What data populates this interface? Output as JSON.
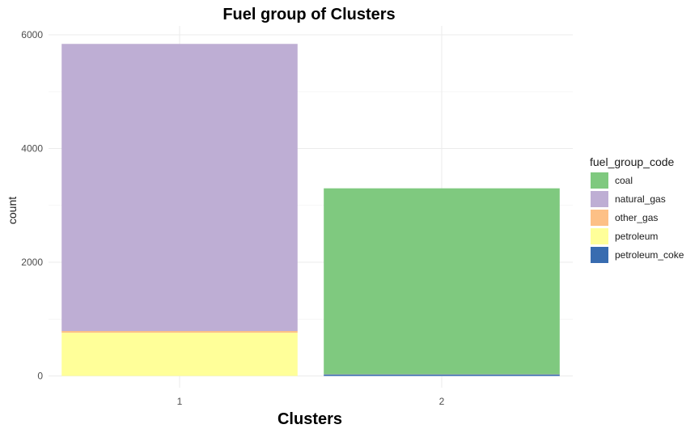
{
  "chart_data": {
    "type": "bar",
    "stacked": true,
    "title": "Fuel group of Clusters",
    "xlabel": "Clusters",
    "ylabel": "count",
    "categories": [
      "1",
      "2"
    ],
    "ylim": [
      0,
      6200
    ],
    "yticks": [
      0,
      2000,
      4000,
      6000
    ],
    "yticklabels": [
      "0",
      "2000",
      "4000",
      "6000"
    ],
    "legend_title": "fuel_group_code",
    "legend_position": "right",
    "grid": true,
    "stack_order_top_to_bottom": [
      "coal",
      "natural_gas",
      "other_gas",
      "petroleum",
      "petroleum_coke"
    ],
    "series": [
      {
        "name": "coal",
        "color": "#7fc97f",
        "values": [
          0,
          3265
        ]
      },
      {
        "name": "natural_gas",
        "color": "#beaed4",
        "values": [
          5050,
          0
        ]
      },
      {
        "name": "other_gas",
        "color": "#fdc086",
        "values": [
          30,
          0
        ]
      },
      {
        "name": "petroleum",
        "color": "#ffff99",
        "values": [
          760,
          5
        ]
      },
      {
        "name": "petroleum_coke",
        "color": "#386cb0",
        "values": [
          0,
          30
        ]
      }
    ]
  }
}
